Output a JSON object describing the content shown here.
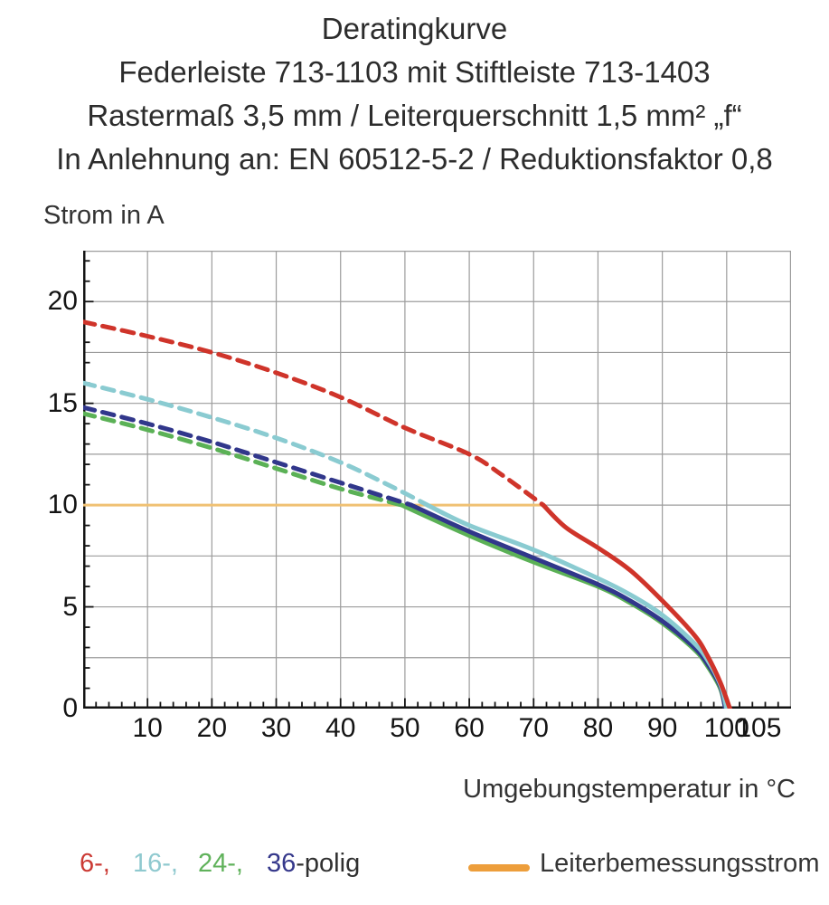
{
  "title": {
    "line1": "Deratingkurve",
    "line2": "Federleiste 713-1103 mit Stiftleiste 713-1403",
    "line3": "Rastermaß 3,5 mm / Leiterquerschnitt 1,5 mm² „f“",
    "line4": "In Anlehnung an: EN 60512-5-2 / Reduktionsfaktor 0,8"
  },
  "legend": {
    "pole_items": [
      {
        "label": "6-,",
        "color": "#cb3a34"
      },
      {
        "label": "16-,",
        "color": "#8fc9cf"
      },
      {
        "label": "24-,",
        "color": "#60b25b"
      },
      {
        "label": "36",
        "color": "#35388b"
      }
    ],
    "pole_suffix": {
      "label": "-polig",
      "color": "#303030"
    },
    "rated_current": {
      "label": "Leiterbemessungsstrom",
      "swatch_color": "#ed9e3b"
    }
  },
  "chart_data": {
    "type": "line",
    "title": "Deratingkurve",
    "xlabel": "Umgebungstemperatur in °C",
    "ylabel": "Strom in A",
    "x_unit": "°C",
    "y_unit": "A",
    "xlim": [
      0,
      110
    ],
    "ylim": [
      0,
      22.5
    ],
    "x_tick_labels": [
      10,
      20,
      30,
      40,
      50,
      60,
      70,
      80,
      90,
      100,
      105
    ],
    "y_tick_labels": [
      0,
      5,
      10,
      15,
      20
    ],
    "x_grid_step": 10,
    "y_grid_step": 2.5,
    "x_minor_tick_step": 2,
    "y_minor_tick_step": 1,
    "grid": true,
    "legend_position": "bottom",
    "style_note": "curves are dashed above the 10 A rated-current line and solid below it",
    "colors": {
      "grid": "#9c9c9c",
      "border": "#9c9c9c",
      "axis": "#141414"
    },
    "series": [
      {
        "name": "24-polig",
        "color": "#5bb156",
        "dashed_points": [
          [
            0,
            14.5
          ],
          [
            10,
            13.7
          ],
          [
            20,
            12.8
          ],
          [
            30,
            11.8
          ],
          [
            40,
            10.8
          ],
          [
            49.5,
            10.0
          ]
        ],
        "solid_points": [
          [
            49.5,
            10.0
          ],
          [
            60,
            8.5
          ],
          [
            70,
            7.2
          ],
          [
            80,
            6.0
          ],
          [
            85,
            5.2
          ],
          [
            90,
            4.2
          ],
          [
            95,
            2.9
          ],
          [
            97,
            2.1
          ],
          [
            99,
            1.0
          ],
          [
            99.8,
            0
          ]
        ]
      },
      {
        "name": "36-polig",
        "color": "#31378b",
        "dashed_points": [
          [
            0,
            14.8
          ],
          [
            10,
            14.0
          ],
          [
            20,
            13.1
          ],
          [
            30,
            12.1
          ],
          [
            40,
            11.1
          ],
          [
            46,
            10.5
          ],
          [
            51,
            10.0
          ]
        ],
        "solid_points": [
          [
            51,
            10.0
          ],
          [
            60,
            8.7
          ],
          [
            70,
            7.4
          ],
          [
            80,
            6.1
          ],
          [
            85,
            5.3
          ],
          [
            90,
            4.3
          ],
          [
            95,
            3.0
          ],
          [
            97,
            2.2
          ],
          [
            99,
            1.1
          ],
          [
            99.8,
            0
          ]
        ]
      },
      {
        "name": "16-polig",
        "color": "#8acbd1",
        "dashed_points": [
          [
            0,
            16.0
          ],
          [
            10,
            15.2
          ],
          [
            20,
            14.3
          ],
          [
            30,
            13.3
          ],
          [
            40,
            12.1
          ],
          [
            48,
            10.9
          ],
          [
            53.5,
            10.0
          ]
        ],
        "solid_points": [
          [
            53.5,
            10.0
          ],
          [
            60,
            9.0
          ],
          [
            70,
            7.8
          ],
          [
            80,
            6.4
          ],
          [
            85,
            5.6
          ],
          [
            90,
            4.6
          ],
          [
            95,
            3.2
          ],
          [
            97,
            2.4
          ],
          [
            99,
            1.2
          ],
          [
            100,
            0
          ]
        ]
      },
      {
        "name": "6-polig",
        "color": "#cf342a",
        "dashed_points": [
          [
            0,
            19.0
          ],
          [
            10,
            18.3
          ],
          [
            20,
            17.5
          ],
          [
            30,
            16.5
          ],
          [
            40,
            15.3
          ],
          [
            50,
            13.8
          ],
          [
            60,
            12.5
          ],
          [
            65,
            11.5
          ],
          [
            71.5,
            10.0
          ]
        ],
        "solid_points": [
          [
            71.5,
            10.0
          ],
          [
            75,
            8.9
          ],
          [
            80,
            7.9
          ],
          [
            85,
            6.8
          ],
          [
            90,
            5.3
          ],
          [
            95,
            3.6
          ],
          [
            97,
            2.6
          ],
          [
            99,
            1.3
          ],
          [
            100.5,
            0
          ]
        ]
      }
    ],
    "rated_current_line": {
      "name": "Leiterbemessungsstrom",
      "color": "#f0c173",
      "value": 10,
      "points": [
        [
          0,
          10
        ],
        [
          71.5,
          10
        ]
      ]
    }
  }
}
